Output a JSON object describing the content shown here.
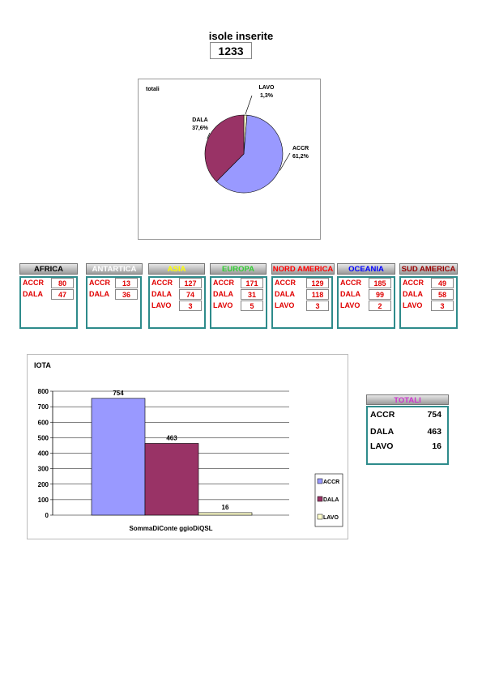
{
  "header": {
    "title": "isole inserite",
    "count": "1233"
  },
  "pie_chart": {
    "type": "pie",
    "title": "totali",
    "slices": [
      {
        "name": "ACCR",
        "percent_label": "61,2%",
        "value": 61.2,
        "color": "#9999ff"
      },
      {
        "name": "DALA",
        "percent_label": "37,6%",
        "value": 37.6,
        "color": "#993366"
      },
      {
        "name": "LAVO",
        "percent_label": "1,3%",
        "value": 1.3,
        "color": "#ffffcc"
      }
    ]
  },
  "continents": [
    {
      "name": "AFRICA",
      "color": "#000000",
      "rows": [
        {
          "label": "ACCR",
          "value": "80"
        },
        {
          "label": "DALA",
          "value": "47"
        }
      ]
    },
    {
      "name": "ANTARTICA",
      "color": "#ffffff",
      "rows": [
        {
          "label": "ACCR",
          "value": "13"
        },
        {
          "label": "DALA",
          "value": "36"
        }
      ]
    },
    {
      "name": "ASIA",
      "color": "#ffff00",
      "rows": [
        {
          "label": "ACCR",
          "value": "127"
        },
        {
          "label": "DALA",
          "value": "74"
        },
        {
          "label": "LAVO",
          "value": "3"
        }
      ]
    },
    {
      "name": "EUROPA",
      "color": "#33cc33",
      "rows": [
        {
          "label": "ACCR",
          "value": "171"
        },
        {
          "label": "DALA",
          "value": "31"
        },
        {
          "label": "LAVO",
          "value": "5"
        }
      ]
    },
    {
      "name": "NORD AMERICA",
      "color": "#ff0000",
      "rows": [
        {
          "label": "ACCR",
          "value": "129"
        },
        {
          "label": "DALA",
          "value": "118"
        },
        {
          "label": "LAVO",
          "value": "3"
        }
      ]
    },
    {
      "name": "OCEANIA",
      "color": "#0000ff",
      "rows": [
        {
          "label": "ACCR",
          "value": "185"
        },
        {
          "label": "DALA",
          "value": "99"
        },
        {
          "label": "LAVO",
          "value": "2"
        }
      ]
    },
    {
      "name": "SUD AMERICA",
      "color": "#990000",
      "rows": [
        {
          "label": "ACCR",
          "value": "49"
        },
        {
          "label": "DALA",
          "value": "58"
        },
        {
          "label": "LAVO",
          "value": "3"
        }
      ]
    }
  ],
  "chart_data": {
    "type": "bar",
    "title": "IOTA",
    "xlabel": "SommaDiConte ggioDiQSL",
    "ylabel": "",
    "ylim": [
      0,
      800
    ],
    "yticks": [
      0,
      100,
      200,
      300,
      400,
      500,
      600,
      700,
      800
    ],
    "grid": true,
    "legend_position": "right",
    "series": [
      {
        "name": "ACCR",
        "values": [
          754
        ],
        "color": "#9999ff"
      },
      {
        "name": "DALA",
        "values": [
          463
        ],
        "color": "#993366"
      },
      {
        "name": "LAVO",
        "values": [
          16
        ],
        "color": "#ffffcc"
      }
    ]
  },
  "totals": {
    "title": "TOTALI",
    "rows": [
      {
        "label": "ACCR",
        "value": "754"
      },
      {
        "label": "DALA",
        "value": "463"
      },
      {
        "label": "LAVO",
        "value": "16"
      }
    ]
  }
}
